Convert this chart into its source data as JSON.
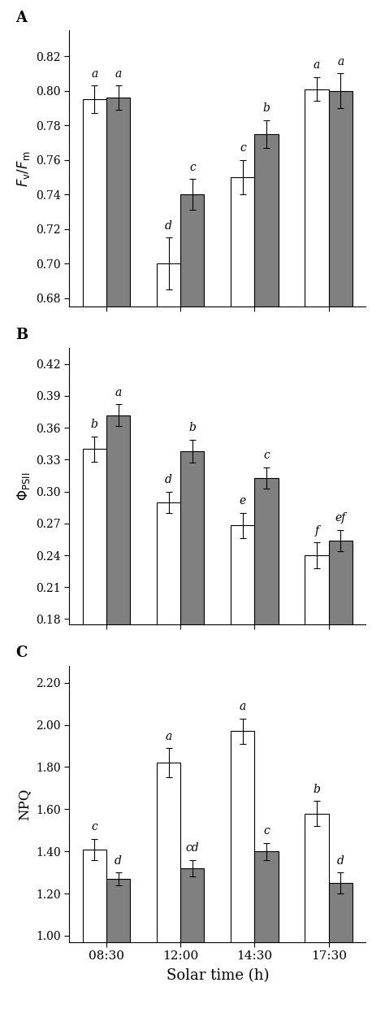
{
  "x_labels": [
    "08:30",
    "12:00",
    "14:30",
    "17:30"
  ],
  "x_positions": [
    1,
    2,
    3,
    4
  ],
  "bar_width": 0.32,
  "bar_color_white": "#ffffff",
  "bar_color_gray": "#808080",
  "bar_edge_color": "#000000",
  "panel_A": {
    "label": "A",
    "ylabel": "$F_{\\rm v}/F_{\\rm m}$",
    "ylim": [
      0.675,
      0.835
    ],
    "yticks": [
      0.68,
      0.7,
      0.72,
      0.74,
      0.76,
      0.78,
      0.8,
      0.82
    ],
    "white_vals": [
      0.795,
      0.7,
      0.75,
      0.801
    ],
    "white_err": [
      0.008,
      0.015,
      0.01,
      0.007
    ],
    "gray_vals": [
      0.796,
      0.74,
      0.775,
      0.8
    ],
    "gray_err": [
      0.007,
      0.009,
      0.008,
      0.01
    ],
    "white_letters": [
      "a",
      "d",
      "c",
      "a"
    ],
    "gray_letters": [
      "a",
      "c",
      "b",
      "a"
    ]
  },
  "panel_B": {
    "label": "B",
    "ylabel": "$\\Phi_{\\rm PSII}$",
    "ylim": [
      0.175,
      0.435
    ],
    "yticks": [
      0.18,
      0.21,
      0.24,
      0.27,
      0.3,
      0.33,
      0.36,
      0.39,
      0.42
    ],
    "white_vals": [
      0.34,
      0.29,
      0.268,
      0.24
    ],
    "white_err": [
      0.012,
      0.01,
      0.012,
      0.012
    ],
    "gray_vals": [
      0.372,
      0.338,
      0.313,
      0.254
    ],
    "gray_err": [
      0.01,
      0.011,
      0.01,
      0.01
    ],
    "white_letters": [
      "b",
      "d",
      "e",
      "f"
    ],
    "gray_letters": [
      "a",
      "b",
      "c",
      "ef"
    ]
  },
  "panel_C": {
    "label": "C",
    "ylabel": "NPQ",
    "ylim": [
      0.97,
      2.28
    ],
    "yticks": [
      1.0,
      1.2,
      1.4,
      1.6,
      1.8,
      2.0,
      2.2
    ],
    "white_vals": [
      1.41,
      1.82,
      1.97,
      1.58
    ],
    "white_err": [
      0.05,
      0.07,
      0.06,
      0.06
    ],
    "gray_vals": [
      1.27,
      1.32,
      1.4,
      1.25
    ],
    "gray_err": [
      0.03,
      0.04,
      0.04,
      0.05
    ],
    "white_letters": [
      "c",
      "a",
      "a",
      "b"
    ],
    "gray_letters": [
      "d",
      "cd",
      "c",
      "d"
    ]
  },
  "xlabel": "Solar time (h)",
  "letter_fontsize": 10,
  "axis_label_fontsize": 12,
  "tick_fontsize": 10,
  "panel_label_fontsize": 13,
  "xlabel_fontsize": 13
}
